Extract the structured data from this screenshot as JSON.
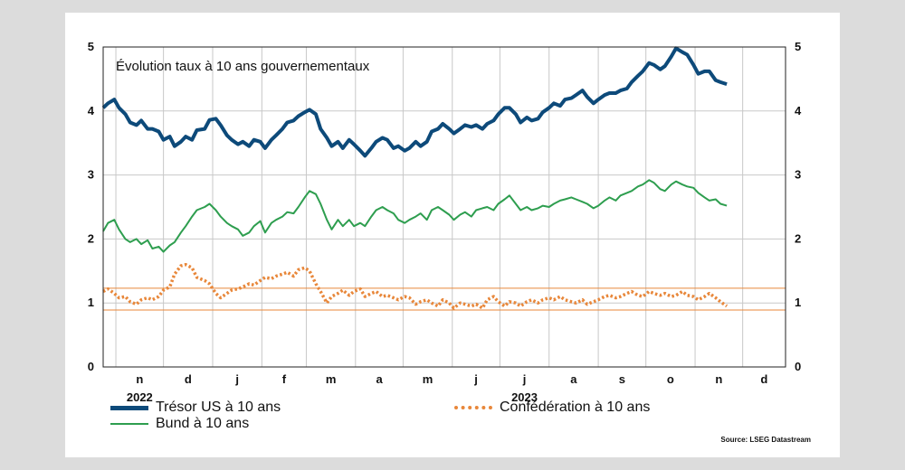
{
  "chart_data": {
    "type": "line",
    "title": "Évolution taux à 10 ans gouvernementaux",
    "ylim": [
      0,
      5
    ],
    "yticks": [
      0,
      1,
      2,
      3,
      4,
      5
    ],
    "grid": true,
    "legend_placement": "bottom",
    "source": "Source: LSEG Datastream",
    "x_month_labels": [
      "n",
      "d",
      "j",
      "f",
      "m",
      "a",
      "m",
      "j",
      "j",
      "a",
      "s",
      "o",
      "n",
      "d"
    ],
    "year_labels": [
      "2022",
      "2023"
    ],
    "x_start_label": "2022-10-24",
    "hlines": [
      {
        "value": 1.23,
        "color": "#e8873a"
      },
      {
        "value": 0.89,
        "color": "#e8873a"
      }
    ],
    "series": [
      {
        "name": "Trésor US à 10 ans",
        "color": "#0d4a7a",
        "style": "solid-thick",
        "x": [
          "2022-10-24",
          "2022-10-27",
          "2022-10-31",
          "2022-11-03",
          "2022-11-07",
          "2022-11-10",
          "2022-11-14",
          "2022-11-17",
          "2022-11-21",
          "2022-11-24",
          "2022-11-28",
          "2022-12-01",
          "2022-12-05",
          "2022-12-08",
          "2022-12-12",
          "2022-12-15",
          "2022-12-19",
          "2022-12-22",
          "2022-12-27",
          "2022-12-30",
          "2023-01-03",
          "2023-01-06",
          "2023-01-10",
          "2023-01-13",
          "2023-01-17",
          "2023-01-20",
          "2023-01-24",
          "2023-01-27",
          "2023-01-31",
          "2023-02-03",
          "2023-02-07",
          "2023-02-10",
          "2023-02-14",
          "2023-02-17",
          "2023-02-21",
          "2023-02-24",
          "2023-02-28",
          "2023-03-03",
          "2023-03-07",
          "2023-03-10",
          "2023-03-14",
          "2023-03-17",
          "2023-03-21",
          "2023-03-24",
          "2023-03-28",
          "2023-03-31",
          "2023-04-04",
          "2023-04-07",
          "2023-04-11",
          "2023-04-14",
          "2023-04-18",
          "2023-04-21",
          "2023-04-25",
          "2023-04-28",
          "2023-05-02",
          "2023-05-05",
          "2023-05-09",
          "2023-05-12",
          "2023-05-16",
          "2023-05-19",
          "2023-05-23",
          "2023-05-26",
          "2023-05-30",
          "2023-06-02",
          "2023-06-06",
          "2023-06-09",
          "2023-06-13",
          "2023-06-16",
          "2023-06-20",
          "2023-06-23",
          "2023-06-27",
          "2023-06-30",
          "2023-07-04",
          "2023-07-07",
          "2023-07-11",
          "2023-07-14",
          "2023-07-18",
          "2023-07-21",
          "2023-07-25",
          "2023-07-28",
          "2023-08-01",
          "2023-08-04",
          "2023-08-08",
          "2023-08-11",
          "2023-08-15",
          "2023-08-18",
          "2023-08-22",
          "2023-08-25",
          "2023-08-29",
          "2023-09-01",
          "2023-09-05",
          "2023-09-08",
          "2023-09-12",
          "2023-09-15",
          "2023-09-19",
          "2023-09-22",
          "2023-09-26",
          "2023-09-29",
          "2023-10-03",
          "2023-10-06",
          "2023-10-10",
          "2023-10-13",
          "2023-10-17",
          "2023-10-20",
          "2023-10-24",
          "2023-10-27",
          "2023-10-31",
          "2023-11-03",
          "2023-11-07",
          "2023-11-10",
          "2023-11-14",
          "2023-11-17",
          "2023-11-21"
        ],
        "y": [
          4.05,
          4.12,
          4.18,
          4.05,
          3.95,
          3.82,
          3.78,
          3.85,
          3.72,
          3.72,
          3.68,
          3.55,
          3.6,
          3.45,
          3.52,
          3.6,
          3.55,
          3.7,
          3.72,
          3.86,
          3.88,
          3.78,
          3.62,
          3.55,
          3.48,
          3.52,
          3.45,
          3.55,
          3.52,
          3.42,
          3.55,
          3.62,
          3.72,
          3.82,
          3.85,
          3.92,
          3.98,
          4.02,
          3.95,
          3.72,
          3.58,
          3.45,
          3.52,
          3.42,
          3.55,
          3.48,
          3.38,
          3.3,
          3.42,
          3.52,
          3.58,
          3.55,
          3.42,
          3.45,
          3.38,
          3.42,
          3.52,
          3.45,
          3.52,
          3.68,
          3.72,
          3.8,
          3.72,
          3.65,
          3.72,
          3.78,
          3.75,
          3.78,
          3.72,
          3.8,
          3.85,
          3.95,
          4.05,
          4.05,
          3.95,
          3.82,
          3.9,
          3.85,
          3.88,
          3.98,
          4.05,
          4.12,
          4.08,
          4.18,
          4.2,
          4.25,
          4.32,
          4.22,
          4.12,
          4.18,
          4.25,
          4.28,
          4.28,
          4.32,
          4.35,
          4.45,
          4.55,
          4.62,
          4.75,
          4.72,
          4.65,
          4.7,
          4.85,
          4.98,
          4.92,
          4.88,
          4.72,
          4.58,
          4.62,
          4.62,
          4.48,
          4.45,
          4.42
        ]
      },
      {
        "name": "Bund à 10 ans",
        "color": "#2e9e4f",
        "style": "solid",
        "x": [
          "2022-10-24",
          "2022-10-27",
          "2022-10-31",
          "2022-11-03",
          "2022-11-07",
          "2022-11-10",
          "2022-11-14",
          "2022-11-17",
          "2022-11-21",
          "2022-11-24",
          "2022-11-28",
          "2022-12-01",
          "2022-12-05",
          "2022-12-08",
          "2022-12-12",
          "2022-12-15",
          "2022-12-19",
          "2022-12-22",
          "2022-12-27",
          "2022-12-30",
          "2023-01-03",
          "2023-01-06",
          "2023-01-10",
          "2023-01-13",
          "2023-01-17",
          "2023-01-20",
          "2023-01-24",
          "2023-01-27",
          "2023-01-31",
          "2023-02-03",
          "2023-02-07",
          "2023-02-10",
          "2023-02-14",
          "2023-02-17",
          "2023-02-21",
          "2023-02-24",
          "2023-02-28",
          "2023-03-03",
          "2023-03-07",
          "2023-03-10",
          "2023-03-14",
          "2023-03-17",
          "2023-03-21",
          "2023-03-24",
          "2023-03-28",
          "2023-03-31",
          "2023-04-04",
          "2023-04-07",
          "2023-04-11",
          "2023-04-14",
          "2023-04-18",
          "2023-04-21",
          "2023-04-25",
          "2023-04-28",
          "2023-05-02",
          "2023-05-05",
          "2023-05-09",
          "2023-05-12",
          "2023-05-16",
          "2023-05-19",
          "2023-05-23",
          "2023-05-26",
          "2023-05-30",
          "2023-06-02",
          "2023-06-06",
          "2023-06-09",
          "2023-06-13",
          "2023-06-16",
          "2023-06-20",
          "2023-06-23",
          "2023-06-27",
          "2023-06-30",
          "2023-07-04",
          "2023-07-07",
          "2023-07-11",
          "2023-07-14",
          "2023-07-18",
          "2023-07-21",
          "2023-07-25",
          "2023-07-28",
          "2023-08-01",
          "2023-08-04",
          "2023-08-08",
          "2023-08-11",
          "2023-08-15",
          "2023-08-18",
          "2023-08-22",
          "2023-08-25",
          "2023-08-29",
          "2023-09-01",
          "2023-09-05",
          "2023-09-08",
          "2023-09-12",
          "2023-09-15",
          "2023-09-19",
          "2023-09-22",
          "2023-09-26",
          "2023-09-29",
          "2023-10-03",
          "2023-10-06",
          "2023-10-10",
          "2023-10-13",
          "2023-10-17",
          "2023-10-20",
          "2023-10-24",
          "2023-10-27",
          "2023-10-31",
          "2023-11-03",
          "2023-11-07",
          "2023-11-10",
          "2023-11-14",
          "2023-11-17",
          "2023-11-21"
        ],
        "y": [
          2.12,
          2.25,
          2.3,
          2.15,
          2.0,
          1.95,
          2.0,
          1.92,
          1.98,
          1.85,
          1.88,
          1.8,
          1.9,
          1.95,
          2.1,
          2.2,
          2.35,
          2.45,
          2.5,
          2.55,
          2.45,
          2.35,
          2.25,
          2.2,
          2.15,
          2.05,
          2.1,
          2.2,
          2.28,
          2.1,
          2.25,
          2.3,
          2.35,
          2.42,
          2.4,
          2.5,
          2.65,
          2.75,
          2.7,
          2.55,
          2.3,
          2.15,
          2.3,
          2.2,
          2.3,
          2.2,
          2.25,
          2.2,
          2.35,
          2.45,
          2.5,
          2.45,
          2.4,
          2.3,
          2.25,
          2.3,
          2.35,
          2.4,
          2.3,
          2.45,
          2.5,
          2.45,
          2.38,
          2.3,
          2.38,
          2.42,
          2.35,
          2.45,
          2.48,
          2.5,
          2.45,
          2.55,
          2.62,
          2.68,
          2.55,
          2.45,
          2.5,
          2.45,
          2.48,
          2.52,
          2.5,
          2.55,
          2.6,
          2.62,
          2.65,
          2.62,
          2.58,
          2.55,
          2.48,
          2.52,
          2.6,
          2.65,
          2.6,
          2.68,
          2.72,
          2.75,
          2.82,
          2.85,
          2.92,
          2.88,
          2.78,
          2.75,
          2.85,
          2.9,
          2.85,
          2.82,
          2.8,
          2.72,
          2.65,
          2.6,
          2.62,
          2.55,
          2.52
        ]
      },
      {
        "name": "Confédération à 10 ans",
        "color": "#e8873a",
        "style": "dotted",
        "x": [
          "2022-10-24",
          "2022-10-27",
          "2022-10-31",
          "2022-11-03",
          "2022-11-07",
          "2022-11-10",
          "2022-11-14",
          "2022-11-17",
          "2022-11-21",
          "2022-11-24",
          "2022-11-28",
          "2022-12-01",
          "2022-12-05",
          "2022-12-08",
          "2022-12-12",
          "2022-12-15",
          "2022-12-19",
          "2022-12-22",
          "2022-12-27",
          "2022-12-30",
          "2023-01-03",
          "2023-01-06",
          "2023-01-10",
          "2023-01-13",
          "2023-01-17",
          "2023-01-20",
          "2023-01-24",
          "2023-01-27",
          "2023-01-31",
          "2023-02-03",
          "2023-02-07",
          "2023-02-10",
          "2023-02-14",
          "2023-02-17",
          "2023-02-21",
          "2023-02-24",
          "2023-02-28",
          "2023-03-03",
          "2023-03-07",
          "2023-03-10",
          "2023-03-14",
          "2023-03-17",
          "2023-03-21",
          "2023-03-24",
          "2023-03-28",
          "2023-03-31",
          "2023-04-04",
          "2023-04-07",
          "2023-04-11",
          "2023-04-14",
          "2023-04-18",
          "2023-04-21",
          "2023-04-25",
          "2023-04-28",
          "2023-05-02",
          "2023-05-05",
          "2023-05-09",
          "2023-05-12",
          "2023-05-16",
          "2023-05-19",
          "2023-05-23",
          "2023-05-26",
          "2023-05-30",
          "2023-06-02",
          "2023-06-06",
          "2023-06-09",
          "2023-06-13",
          "2023-06-16",
          "2023-06-20",
          "2023-06-23",
          "2023-06-27",
          "2023-06-30",
          "2023-07-04",
          "2023-07-07",
          "2023-07-11",
          "2023-07-14",
          "2023-07-18",
          "2023-07-21",
          "2023-07-25",
          "2023-07-28",
          "2023-08-01",
          "2023-08-04",
          "2023-08-08",
          "2023-08-11",
          "2023-08-15",
          "2023-08-18",
          "2023-08-22",
          "2023-08-25",
          "2023-08-29",
          "2023-09-01",
          "2023-09-05",
          "2023-09-08",
          "2023-09-12",
          "2023-09-15",
          "2023-09-19",
          "2023-09-22",
          "2023-09-26",
          "2023-09-29",
          "2023-10-03",
          "2023-10-06",
          "2023-10-10",
          "2023-10-13",
          "2023-10-17",
          "2023-10-20",
          "2023-10-24",
          "2023-10-27",
          "2023-10-31",
          "2023-11-03",
          "2023-11-07",
          "2023-11-10",
          "2023-11-14",
          "2023-11-17",
          "2023-11-21"
        ],
        "y": [
          1.18,
          1.22,
          1.15,
          1.08,
          1.1,
          1.02,
          0.98,
          1.05,
          1.08,
          1.05,
          1.1,
          1.2,
          1.25,
          1.45,
          1.58,
          1.6,
          1.55,
          1.4,
          1.35,
          1.3,
          1.15,
          1.08,
          1.15,
          1.2,
          1.22,
          1.25,
          1.3,
          1.28,
          1.35,
          1.4,
          1.38,
          1.42,
          1.45,
          1.48,
          1.42,
          1.52,
          1.55,
          1.5,
          1.3,
          1.18,
          1.0,
          1.1,
          1.15,
          1.2,
          1.12,
          1.18,
          1.22,
          1.1,
          1.15,
          1.18,
          1.1,
          1.12,
          1.08,
          1.05,
          1.1,
          1.08,
          0.98,
          1.02,
          1.05,
          1.0,
          0.95,
          1.05,
          1.0,
          0.92,
          1.0,
          0.98,
          0.95,
          0.98,
          0.92,
          1.05,
          1.1,
          1.02,
          0.95,
          1.02,
          1.0,
          0.95,
          1.02,
          1.05,
          1.0,
          1.05,
          1.08,
          1.05,
          1.1,
          1.05,
          1.02,
          1.0,
          1.05,
          0.98,
          1.02,
          1.05,
          1.1,
          1.12,
          1.08,
          1.1,
          1.15,
          1.18,
          1.12,
          1.1,
          1.18,
          1.15,
          1.12,
          1.15,
          1.1,
          1.12,
          1.18,
          1.12,
          1.1,
          1.05,
          1.1,
          1.15,
          1.08,
          1.02,
          0.95
        ]
      }
    ]
  }
}
